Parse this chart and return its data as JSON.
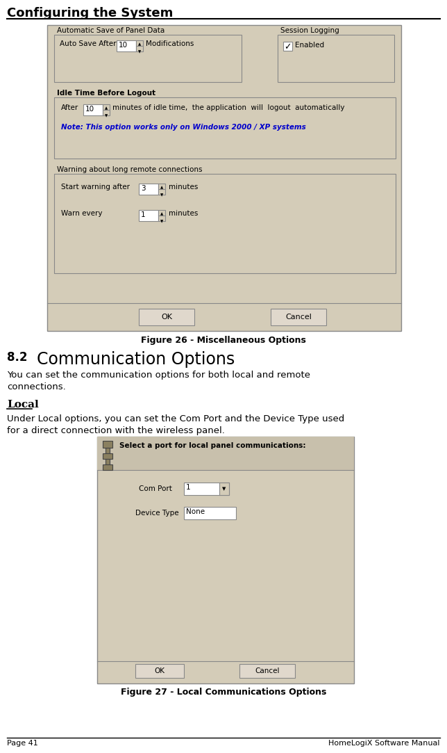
{
  "page_bg": "#ffffff",
  "header_text": "Configuring the System",
  "panel_bg": "#d4ccb8",
  "panel_bg2": "#ccc4b0",
  "white": "#ffffff",
  "border_color": "#888888",
  "section1_title": "Automatic Save of Panel Data",
  "session_title": "Session Logging",
  "idle_title": "Idle Time Before Logout",
  "warn_title": "Warning about long remote connections",
  "fig26_caption": "Figure 26 - Miscellaneous Options",
  "section82_number": "8.2",
  "section82_title": "  Communication Options",
  "section82_body1": "You can set the communication options for both local and remote",
  "section82_body2": "connections.",
  "local_heading": "Local",
  "local_body1": "Under Local options, you can set the Com Port and the Device Type used",
  "local_body2": "for a direct connection with the wireless panel.",
  "fig27_caption": "Figure 27 - Local Communications Options",
  "footer_left": "Page 41",
  "footer_right": "HomeLogiX Software Manual",
  "note_text": "Note: This option works only on Windows 2000 / XP systems",
  "note_color": "#0000cc",
  "dialog_header_text": "Select a port for local panel communications:",
  "com_port_label": "Com Port",
  "com_port_value": "1",
  "device_type_label": "Device Type",
  "device_type_value": "None",
  "ok_label": "OK",
  "cancel_label": "Cancel",
  "auto_save_label": "Auto Save After",
  "auto_save_value": "10",
  "modifications_label": "Modifications",
  "after_label": "After",
  "idle_value": "10",
  "minutes_of_idle": "minutes of idle time,  the application  will  logout  automatically",
  "start_warn_label": "Start warning after",
  "start_warn_value": "3",
  "warn_every_label": "Warn every",
  "warn_every_value": "1",
  "minutes_label": "minutes",
  "enabled_label": "Enabled"
}
